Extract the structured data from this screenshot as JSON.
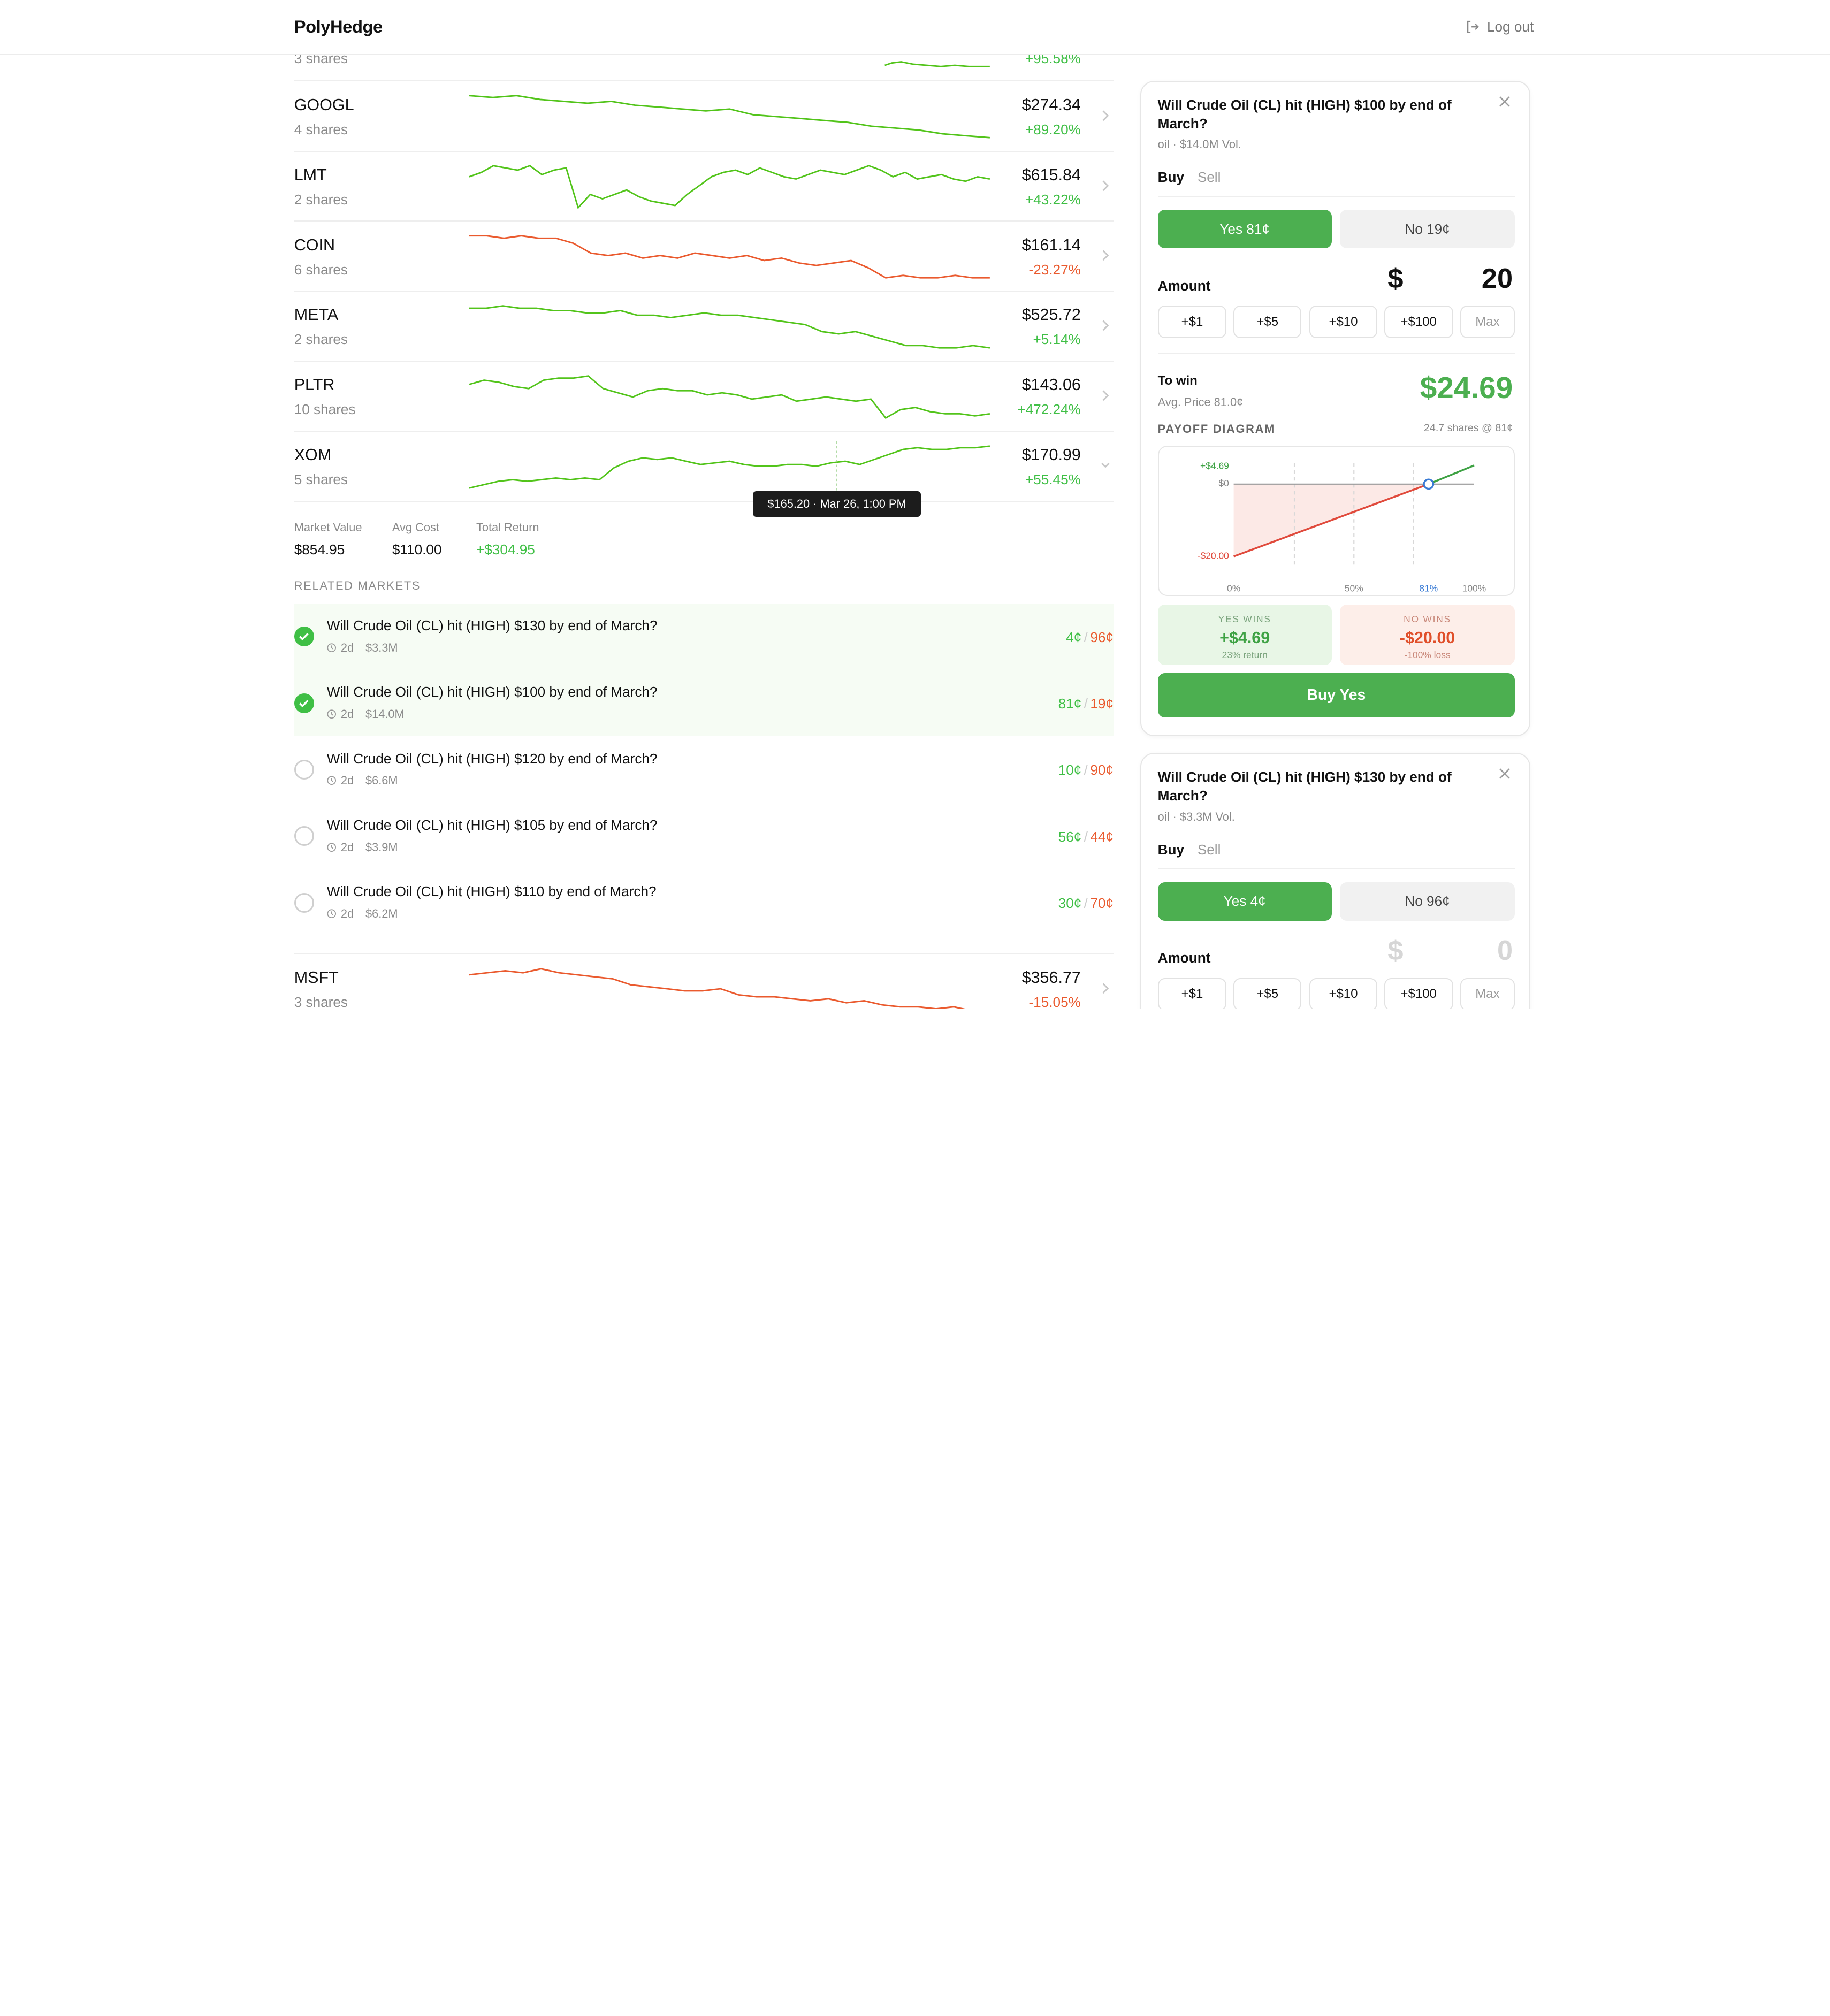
{
  "header": {
    "brand": "PolyHedge",
    "logout_label": "Log out"
  },
  "stocks": [
    {
      "symbol": "",
      "shares": "3 shares",
      "price": "",
      "change": "+95.58%",
      "trend": "up",
      "points": []
    },
    {
      "symbol": "GOOGL",
      "shares": "4 shares",
      "price": "$274.34",
      "change": "+89.20%",
      "trend": "up",
      "points": [
        32,
        31,
        32,
        30,
        29,
        28,
        29,
        27,
        26,
        25,
        24,
        25,
        22,
        21,
        20,
        19,
        18,
        16,
        15,
        14,
        12,
        11,
        10
      ]
    },
    {
      "symbol": "LMT",
      "shares": "2 shares",
      "price": "$615.84",
      "change": "+43.22%",
      "trend": "up",
      "points": [
        30,
        32,
        35,
        34,
        33,
        35,
        31,
        33,
        34,
        16,
        22,
        20,
        22,
        24,
        21,
        19,
        18,
        17,
        22,
        26,
        30,
        32,
        33,
        31,
        34,
        32,
        30,
        29,
        31,
        33,
        32,
        31,
        33,
        35,
        33,
        30,
        32,
        29,
        30,
        31,
        29,
        28,
        30,
        29
      ]
    },
    {
      "symbol": "COIN",
      "shares": "6 shares",
      "price": "$161.14",
      "change": "-23.27%",
      "trend": "down",
      "points": [
        34,
        34,
        33,
        34,
        33,
        33,
        31,
        27,
        26,
        27,
        25,
        26,
        25,
        27,
        26,
        25,
        26,
        24,
        25,
        23,
        22,
        23,
        24,
        21,
        17,
        18,
        17,
        17,
        18,
        17,
        17
      ]
    },
    {
      "symbol": "META",
      "shares": "2 shares",
      "price": "$525.72",
      "change": "+5.14%",
      "trend": "up",
      "points": [
        32,
        32,
        33,
        32,
        32,
        31,
        31,
        30,
        30,
        31,
        29,
        29,
        28,
        29,
        30,
        29,
        29,
        28,
        27,
        26,
        25,
        22,
        21,
        22,
        20,
        18,
        16,
        16,
        15,
        15,
        16,
        15
      ]
    },
    {
      "symbol": "PLTR",
      "shares": "10 shares",
      "price": "$143.06",
      "change": "+472.24%",
      "trend": "up",
      "points": [
        30,
        32,
        31,
        29,
        28,
        32,
        33,
        33,
        34,
        28,
        26,
        24,
        27,
        28,
        27,
        27,
        25,
        26,
        25,
        23,
        24,
        25,
        22,
        23,
        24,
        23,
        22,
        23,
        14,
        18,
        19,
        17,
        16,
        16,
        15,
        16
      ]
    },
    {
      "symbol": "XOM",
      "shares": "5 shares",
      "price": "$170.99",
      "change": "+55.45%",
      "trend": "up",
      "points": [
        10,
        12,
        14,
        15,
        14,
        15,
        16,
        15,
        16,
        15,
        22,
        26,
        28,
        27,
        28,
        26,
        24,
        25,
        26,
        24,
        23,
        23,
        24,
        24,
        23,
        25,
        26,
        24,
        27,
        30,
        33,
        34,
        33,
        33,
        34,
        34,
        35
      ]
    },
    {
      "symbol": "MSFT",
      "shares": "3 shares",
      "price": "$356.77",
      "change": "-15.05%",
      "trend": "down",
      "points": [
        32,
        33,
        34,
        33,
        35,
        33,
        32,
        31,
        30,
        27,
        26,
        25,
        24,
        24,
        25,
        22,
        21,
        21,
        20,
        19,
        20,
        18,
        19,
        17,
        16,
        16,
        15,
        16,
        14,
        14
      ]
    }
  ],
  "tooltip": "$165.20 · Mar 26, 1:00 PM",
  "summary": [
    {
      "label": "Market Value",
      "value": "$854.95",
      "positive": false
    },
    {
      "label": "Avg Cost",
      "value": "$110.00",
      "positive": false
    },
    {
      "label": "Total Return",
      "value": "+$304.95",
      "positive": true
    }
  ],
  "related": {
    "title": "RELATED MARKETS",
    "items": [
      {
        "question": "Will Crude Oil (CL) hit (HIGH) $130 by end of March?",
        "time": "2d",
        "volume": "$3.3M",
        "yes": "4¢",
        "no": "96¢",
        "selected": true
      },
      {
        "question": "Will Crude Oil (CL) hit (HIGH) $100 by end of March?",
        "time": "2d",
        "volume": "$14.0M",
        "yes": "81¢",
        "no": "19¢",
        "selected": true
      },
      {
        "question": "Will Crude Oil (CL) hit (HIGH) $120 by end of March?",
        "time": "2d",
        "volume": "$6.6M",
        "yes": "10¢",
        "no": "90¢",
        "selected": false
      },
      {
        "question": "Will Crude Oil (CL) hit (HIGH) $105 by end of March?",
        "time": "2d",
        "volume": "$3.9M",
        "yes": "56¢",
        "no": "44¢",
        "selected": false
      },
      {
        "question": "Will Crude Oil (CL) hit (HIGH) $110 by end of March?",
        "time": "2d",
        "volume": "$6.2M",
        "yes": "30¢",
        "no": "70¢",
        "selected": false
      }
    ]
  },
  "cards": [
    {
      "title": "Will Crude Oil (CL) hit (HIGH) $100 by end of March?",
      "sub": "oil · $14.0M Vol.",
      "tab_buy": "Buy",
      "tab_sell": "Sell",
      "yes_label": "Yes 81¢",
      "no_label": "No 19¢",
      "amount_label": "Amount",
      "currency": "$",
      "amount": "20",
      "chips": [
        "+$1",
        "+$5",
        "+$10",
        "+$100",
        "Max"
      ],
      "to_win_label": "To win",
      "avg_price": "Avg. Price 81.0¢",
      "to_win": "$24.69",
      "payoff_label": "PAYOFF DIAGRAM",
      "payoff_meta": "24.7 shares @ 81¢",
      "payoff": {
        "max_gain": "+$4.69",
        "zero": "$0",
        "max_loss": "-$20.00",
        "x_ticks": [
          "0%",
          "50%",
          "81%",
          "100%"
        ]
      },
      "yes_wins_label": "YES WINS",
      "yes_wins_value": "+$4.69",
      "yes_wins_sub": "23% return",
      "no_wins_label": "NO WINS",
      "no_wins_value": "-$20.00",
      "no_wins_sub": "-100% loss",
      "buy_label": "Buy Yes"
    },
    {
      "title": "Will Crude Oil (CL) hit (HIGH) $130 by end of March?",
      "sub": "oil · $3.3M Vol.",
      "tab_buy": "Buy",
      "tab_sell": "Sell",
      "yes_label": "Yes 4¢",
      "no_label": "No 96¢",
      "amount_label": "Amount",
      "currency": "$",
      "amount": "0",
      "chips": [
        "+$1",
        "+$5",
        "+$10",
        "+$100",
        "Max"
      ]
    }
  ],
  "colors": {
    "green": "#4caf50",
    "spark_green": "#52c41a",
    "spark_red": "#ea5a2e"
  }
}
